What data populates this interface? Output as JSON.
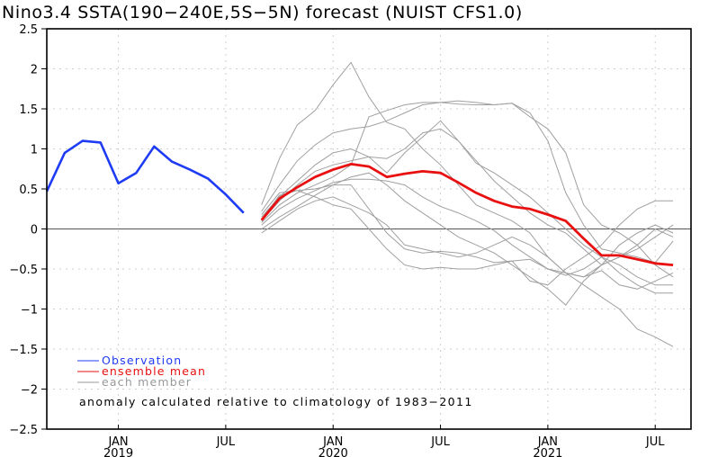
{
  "chart_data": {
    "type": "line",
    "title": "Nino3.4 SSTA(190−240E,5S−5N) forecast (NUIST CFS1.0)",
    "xlabel": "",
    "ylabel": "",
    "ylim": [
      -2.5,
      2.5
    ],
    "yticks": [
      2.5,
      2,
      1.5,
      1,
      0.5,
      0,
      -0.5,
      -1,
      -1.5,
      -2,
      -2.5
    ],
    "ytick_labels": [
      "2.5",
      "2",
      "1.5",
      "1",
      "0.5",
      "0",
      "−0.5",
      "−1",
      "−1.5",
      "−2",
      "−2.5"
    ],
    "xlim_months": [
      "2018-09",
      "2021-09"
    ],
    "xticks": [
      {
        "month": "2019-01",
        "label": "JAN",
        "year": "2019"
      },
      {
        "month": "2019-07",
        "label": "JUL",
        "year": ""
      },
      {
        "month": "2020-01",
        "label": "JAN",
        "year": "2020"
      },
      {
        "month": "2020-07",
        "label": "JUL",
        "year": ""
      },
      {
        "month": "2021-01",
        "label": "JAN",
        "year": "2021"
      },
      {
        "month": "2021-07",
        "label": "JUL",
        "year": ""
      }
    ],
    "grid": true,
    "zero_line": true,
    "legend_position": "bottom-left",
    "legend": [
      {
        "name": "Observation",
        "color": "#1f3cf5"
      },
      {
        "name": "ensemble mean",
        "color": "#e81010"
      },
      {
        "name": "each member",
        "color": "#999999"
      }
    ],
    "annotation": "anomaly calculated relative to climatology of 1983−2011",
    "observation": {
      "name": "Observation",
      "color": "#1f3cf5",
      "start_month": "2018-09",
      "values": [
        0.47,
        0.95,
        1.1,
        1.08,
        0.57,
        0.7,
        1.03,
        0.84,
        0.74,
        0.63,
        0.43,
        0.2
      ]
    },
    "forecast_start_month": "2019-09",
    "ensemble_mean": {
      "name": "ensemble mean",
      "color": "#e81010",
      "values": [
        0.11,
        0.38,
        0.52,
        0.65,
        0.74,
        0.81,
        0.78,
        0.65,
        0.69,
        0.72,
        0.7,
        0.58,
        0.45,
        0.35,
        0.28,
        0.25,
        0.18,
        0.1,
        -0.12,
        -0.33,
        -0.33,
        -0.38,
        -0.43,
        -0.45
      ]
    },
    "members": [
      {
        "name": "member-1",
        "values": [
          0.3,
          0.88,
          1.3,
          1.48,
          1.8,
          2.08,
          1.65,
          1.33,
          1.25,
          1.0,
          0.8,
          0.55,
          0.3,
          0.2,
          0.1,
          -0.05,
          -0.35,
          -0.55,
          -0.6,
          -0.52,
          -0.7,
          -0.75,
          -0.65,
          -0.55
        ]
      },
      {
        "name": "member-2",
        "values": [
          0.22,
          0.55,
          0.85,
          1.05,
          1.2,
          1.25,
          1.28,
          1.35,
          1.45,
          1.55,
          1.58,
          1.56,
          1.55,
          1.55,
          1.57,
          1.45,
          1.1,
          0.45,
          0.05,
          -0.25,
          -0.3,
          -0.35,
          -0.42,
          -0.15
        ]
      },
      {
        "name": "member-3",
        "values": [
          0.15,
          0.4,
          0.6,
          0.8,
          0.95,
          1.0,
          0.9,
          0.7,
          0.95,
          1.15,
          1.35,
          1.1,
          0.82,
          0.7,
          0.55,
          0.4,
          0.2,
          0.0,
          -0.2,
          -0.35,
          -0.55,
          -0.7,
          -0.8,
          -0.8
        ]
      },
      {
        "name": "member-4",
        "values": [
          0.1,
          0.35,
          0.55,
          0.72,
          0.8,
          0.85,
          0.9,
          0.88,
          1.0,
          1.2,
          1.25,
          1.1,
          0.85,
          0.6,
          0.4,
          0.2,
          0.05,
          -0.05,
          -0.25,
          -0.45,
          -0.35,
          -0.25,
          -0.1,
          0.05
        ]
      },
      {
        "name": "member-5",
        "values": [
          0.08,
          0.3,
          0.45,
          0.55,
          0.65,
          0.8,
          1.4,
          1.48,
          1.55,
          1.58,
          1.58,
          1.6,
          1.58,
          1.55,
          1.57,
          1.4,
          1.25,
          0.95,
          0.3,
          0.05,
          -0.05,
          -0.2,
          -0.45,
          -0.6
        ]
      },
      {
        "name": "member-6",
        "values": [
          0.05,
          0.25,
          0.38,
          0.48,
          0.58,
          0.62,
          0.62,
          0.6,
          0.55,
          0.4,
          0.28,
          0.2,
          0.1,
          -0.02,
          -0.2,
          -0.35,
          -0.5,
          -0.58,
          -0.5,
          -0.35,
          -0.45,
          -0.6,
          -0.7,
          -0.7
        ]
      },
      {
        "name": "member-7",
        "values": [
          0.0,
          0.15,
          0.28,
          0.42,
          0.55,
          0.65,
          0.7,
          0.55,
          0.35,
          0.2,
          0.05,
          -0.1,
          -0.2,
          -0.3,
          -0.45,
          -0.6,
          -0.75,
          -0.95,
          -0.65,
          -0.45,
          -0.35,
          -0.2,
          0.0,
          -0.1
        ]
      },
      {
        "name": "member-8",
        "values": [
          -0.05,
          0.1,
          0.25,
          0.35,
          0.4,
          0.3,
          0.2,
          0.05,
          -0.2,
          -0.25,
          -0.3,
          -0.35,
          -0.3,
          -0.2,
          -0.1,
          -0.2,
          -0.35,
          -0.55,
          -0.7,
          -0.85,
          -1.0,
          -1.25,
          -1.35,
          -1.47
        ]
      },
      {
        "name": "member-9",
        "values": [
          0.18,
          0.45,
          0.48,
          0.5,
          0.55,
          0.55,
          0.25,
          -0.05,
          -0.25,
          -0.3,
          -0.28,
          -0.3,
          -0.35,
          -0.42,
          -0.4,
          -0.38,
          -0.5,
          -0.55,
          -0.6,
          -0.45,
          -0.2,
          -0.05,
          0.05,
          -0.05
        ]
      },
      {
        "name": "member-10",
        "values": [
          0.12,
          0.42,
          0.48,
          0.4,
          0.3,
          0.25,
          0.0,
          -0.25,
          -0.45,
          -0.5,
          -0.48,
          -0.5,
          -0.5,
          -0.45,
          -0.4,
          -0.65,
          -0.7,
          -0.5,
          -0.35,
          -0.2,
          0.05,
          0.25,
          0.35,
          0.35
        ]
      }
    ]
  }
}
